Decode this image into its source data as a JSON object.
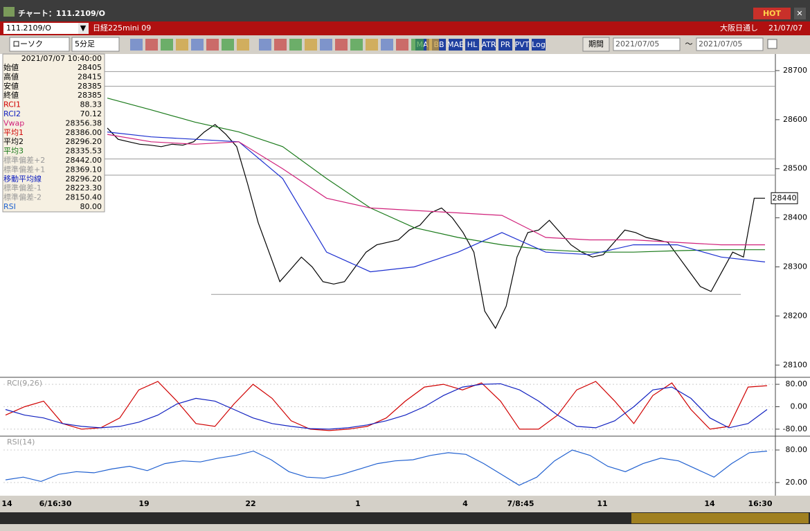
{
  "window": {
    "title": "チャート：111.2109/O",
    "hot": "HOT"
  },
  "symbol_bar": {
    "code": "111.2109/O",
    "name": "日経225mini 09",
    "market": "大阪日通し",
    "date": "21/07/07"
  },
  "toolbar": {
    "chart_type": "ローソク",
    "interval": "5分足",
    "buttons": [
      "MA",
      "BB",
      "MAE",
      "HL",
      "ATR",
      "PR",
      "PVT",
      "Log"
    ],
    "period": "期間",
    "from": "2021/07/05",
    "separator": "～",
    "to": "2021/07/05"
  },
  "info_panel": {
    "timestamp": "2021/07/07 10:40:00",
    "rows": [
      [
        "始値",
        "28405"
      ],
      [
        "高値",
        "28415"
      ],
      [
        "安値",
        "28385"
      ],
      [
        "終値",
        "28385"
      ],
      [
        "RCI1",
        "88.33"
      ],
      [
        "RCI2",
        "70.12"
      ],
      [
        "Vwap",
        "28356.38"
      ],
      [
        "平均1",
        "28386.00"
      ],
      [
        "平均2",
        "28296.20"
      ],
      [
        "平均3",
        "28335.53"
      ],
      [
        "標準偏差+2",
        "28442.00"
      ],
      [
        "標準偏差+1",
        "28369.10"
      ],
      [
        "移動平均線",
        "28296.20"
      ],
      [
        "標準偏差-1",
        "28223.30"
      ],
      [
        "標準偏差-2",
        "28150.40"
      ],
      [
        "RSI",
        "80.00"
      ]
    ]
  },
  "chart_data": [
    {
      "type": "line",
      "ylim": [
        28075,
        28731
      ],
      "yticks": [
        28100,
        28200,
        28300,
        28400,
        28500,
        28600,
        28700
      ],
      "last_value": 28440,
      "hlines": [
        28698,
        28668,
        28520,
        28487,
        28244
      ],
      "series": [
        {
          "color": "#000000",
          "values": [
            28583,
            28560,
            28555,
            28550,
            28548,
            28545,
            28550,
            28548,
            28555,
            28575,
            28590,
            28570,
            28545,
            28470,
            28390,
            28330,
            28270,
            28295,
            28320,
            28300,
            28270,
            28265,
            28270,
            28300,
            28330,
            28345,
            28350,
            28355,
            28375,
            28385,
            28410,
            28420,
            28400,
            28370,
            28330,
            28210,
            28175,
            28220,
            28320,
            28370,
            28375,
            28395,
            28370,
            28345,
            28330,
            28320,
            28325,
            28350,
            28375,
            28370,
            28360,
            28355,
            28350,
            28320,
            28290,
            28260,
            28250,
            28290,
            28330,
            28320,
            28440,
            28440
          ]
        },
        {
          "color": "#1a7a1a",
          "values": [
            28644,
            28620,
            28595,
            28575,
            28545,
            28480,
            28420,
            28380,
            28360,
            28345,
            28335,
            28330,
            28330,
            28333,
            28335,
            28335
          ]
        },
        {
          "color": "#1c2fd0",
          "values": [
            28575,
            28565,
            28560,
            28555,
            28480,
            28330,
            28290,
            28300,
            28330,
            28370,
            28330,
            28325,
            28345,
            28345,
            28320,
            28310
          ]
        },
        {
          "color": "#d0207a",
          "values": [
            28570,
            28555,
            28550,
            28555,
            28500,
            28440,
            28420,
            28415,
            28410,
            28405,
            28360,
            28355,
            28355,
            28350,
            28345,
            28345
          ]
        }
      ]
    },
    {
      "type": "line",
      "title": "RCI(9,26)",
      "ylim": [
        -100,
        100
      ],
      "yticks": [
        {
          "value": 80,
          "label": "80.00"
        },
        {
          "value": 0,
          "label": "0.00"
        },
        {
          "value": -80,
          "label": "-80.00"
        }
      ],
      "series": [
        {
          "color": "#d00000",
          "values": [
            -30,
            0,
            20,
            -60,
            -80,
            -75,
            -40,
            60,
            90,
            20,
            -60,
            -70,
            10,
            80,
            30,
            -50,
            -80,
            -85,
            -80,
            -70,
            -40,
            20,
            70,
            80,
            60,
            85,
            20,
            -80,
            -80,
            -30,
            60,
            90,
            20,
            -60,
            40,
            85,
            -10,
            -80,
            -70,
            70,
            75
          ]
        },
        {
          "color": "#1020c0",
          "values": [
            -10,
            -30,
            -40,
            -60,
            -70,
            -75,
            -70,
            -55,
            -30,
            10,
            30,
            20,
            -10,
            -40,
            -60,
            -70,
            -78,
            -80,
            -75,
            -65,
            -50,
            -30,
            0,
            40,
            70,
            80,
            82,
            60,
            20,
            -30,
            -70,
            -75,
            -50,
            0,
            60,
            70,
            30,
            -40,
            -75,
            -60,
            -10
          ]
        }
      ]
    },
    {
      "type": "line",
      "title": "RSI(14)",
      "ylim": [
        -3,
        103
      ],
      "yticks": [
        {
          "value": 80,
          "label": "80.00"
        },
        {
          "value": 20,
          "label": "20.00"
        }
      ],
      "series": [
        {
          "color": "#2060d0",
          "values": [
            25,
            30,
            22,
            35,
            40,
            38,
            45,
            50,
            42,
            55,
            60,
            58,
            65,
            70,
            78,
            62,
            40,
            30,
            28,
            35,
            45,
            55,
            60,
            62,
            70,
            75,
            72,
            55,
            35,
            15,
            30,
            60,
            80,
            70,
            50,
            40,
            55,
            65,
            60,
            45,
            30,
            55,
            75,
            78
          ]
        }
      ]
    }
  ],
  "x_labels": [
    "14",
    "6/16:30",
    "19",
    "22",
    "1",
    "4",
    "7/8:45",
    "11",
    "14",
    "16:30"
  ]
}
